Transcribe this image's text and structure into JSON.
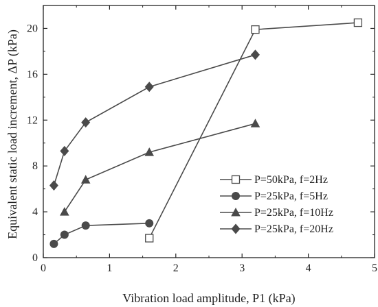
{
  "chart_data": {
    "type": "line",
    "xlabel": "Vibration load amplitude, P1 (kPa)",
    "ylabel": "Equivalent static load increment, ΔP (kPa)",
    "xlim": [
      0,
      5
    ],
    "ylim": [
      0,
      22
    ],
    "x_ticks": [
      "0",
      "1",
      "2",
      "3",
      "4",
      "5"
    ],
    "y_ticks": [
      "0",
      "4",
      "8",
      "12",
      "16",
      "20"
    ],
    "grid": false,
    "legend_position": "lower-right",
    "series": [
      {
        "name": "P=50kPa, f=2Hz",
        "marker": "open-square",
        "color": "#4a4a4a",
        "x": [
          1.6,
          3.2,
          4.75
        ],
        "y": [
          1.7,
          19.9,
          20.5
        ]
      },
      {
        "name": "P=25kPa, f=5Hz",
        "marker": "circle",
        "color": "#4a4a4a",
        "x": [
          0.16,
          0.32,
          0.64,
          1.6
        ],
        "y": [
          1.2,
          2.0,
          2.8,
          3.0
        ]
      },
      {
        "name": "P=25kPa, f=10Hz",
        "marker": "triangle",
        "color": "#4a4a4a",
        "x": [
          0.32,
          0.64,
          1.6,
          3.2
        ],
        "y": [
          4.0,
          6.8,
          9.2,
          11.7
        ]
      },
      {
        "name": "P=25kPa, f=20Hz",
        "marker": "diamond",
        "color": "#4a4a4a",
        "x": [
          0.16,
          0.32,
          0.64,
          1.6,
          3.2
        ],
        "y": [
          6.3,
          9.3,
          11.8,
          14.9,
          17.7
        ]
      }
    ]
  }
}
